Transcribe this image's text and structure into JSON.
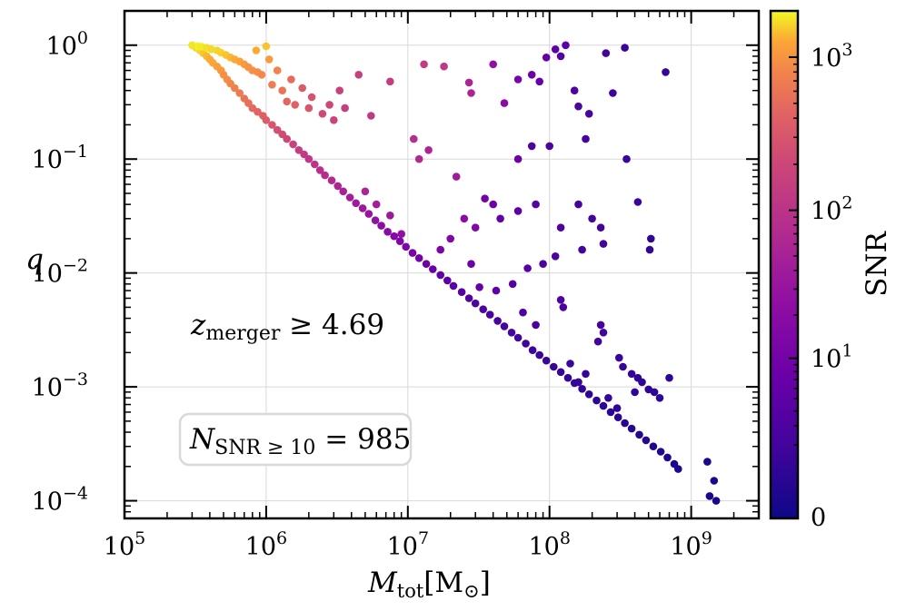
{
  "chart_data": {
    "type": "scatter",
    "title": "",
    "xlabel": "M_tot [M_⊙]",
    "xlabel_main": "M",
    "xlabel_sub": "tot",
    "xlabel_unit": "[M",
    "xlabel_unit_sub": "⊙",
    "xlabel_unit_close": "]",
    "ylabel": "q",
    "x_scale": "log",
    "y_scale": "log",
    "xlim": [
      100000,
      3000000000
    ],
    "ylim": [
      7e-05,
      2
    ],
    "grid": true,
    "x_ticks": [
      {
        "value": 100000,
        "base": "10",
        "exp": "5"
      },
      {
        "value": 1000000,
        "base": "10",
        "exp": "6"
      },
      {
        "value": 10000000,
        "base": "10",
        "exp": "7"
      },
      {
        "value": 100000000,
        "base": "10",
        "exp": "8"
      },
      {
        "value": 1000000000,
        "base": "10",
        "exp": "9"
      }
    ],
    "y_ticks": [
      {
        "value": 1,
        "base": "10",
        "exp": "0"
      },
      {
        "value": 0.1,
        "base": "10",
        "exp": "−1"
      },
      {
        "value": 0.01,
        "base": "10",
        "exp": "−2"
      },
      {
        "value": 0.001,
        "base": "10",
        "exp": "−3"
      },
      {
        "value": 0.0001,
        "base": "10",
        "exp": "−4"
      }
    ],
    "colorbar": {
      "label": "SNR",
      "colormap": "plasma",
      "scale": "symlog",
      "range": [
        0,
        2000
      ],
      "ticks": [
        {
          "value": 0,
          "text": "0",
          "base": "",
          "exp": ""
        },
        {
          "value": 10,
          "text": "",
          "base": "10",
          "exp": "1"
        },
        {
          "value": 100,
          "text": "",
          "base": "10",
          "exp": "2"
        },
        {
          "value": 1000,
          "text": "",
          "base": "10",
          "exp": "3"
        }
      ]
    },
    "annotations": {
      "z_label_main": "z",
      "z_label_sub": "merger",
      "z_label_rest": " ≥ 4.69",
      "n_label_main": "N",
      "n_label_sub": "SNR ≥ 10",
      "n_label_rest": " = 985"
    },
    "series": [
      {
        "points": [
          [
            300000,
            1.0,
            1800
          ],
          [
            320000,
            0.95,
            1700
          ],
          [
            340000,
            0.9,
            1650
          ],
          [
            360000,
            0.85,
            1500
          ],
          [
            380000,
            0.8,
            1400
          ],
          [
            400000,
            0.75,
            1300
          ],
          [
            420000,
            0.7,
            1250
          ],
          [
            450000,
            0.65,
            1150
          ],
          [
            480000,
            0.6,
            1050
          ],
          [
            500000,
            0.55,
            980
          ],
          [
            530000,
            0.5,
            900
          ],
          [
            560000,
            0.46,
            820
          ],
          [
            600000,
            0.42,
            760
          ],
          [
            650000,
            0.38,
            680
          ],
          [
            700000,
            0.34,
            600
          ],
          [
            750000,
            0.31,
            540
          ],
          [
            800000,
            0.28,
            480
          ],
          [
            870000,
            0.26,
            430
          ],
          [
            950000,
            0.24,
            390
          ],
          [
            1000000,
            0.22,
            350
          ],
          [
            1100000,
            0.2,
            300
          ],
          [
            1200000,
            0.18,
            260
          ],
          [
            1300000,
            0.165,
            230
          ],
          [
            1400000,
            0.15,
            200
          ],
          [
            1550000,
            0.135,
            175
          ],
          [
            1700000,
            0.12,
            150
          ],
          [
            1850000,
            0.11,
            130
          ],
          [
            2000000,
            0.1,
            115
          ],
          [
            2200000,
            0.09,
            100
          ],
          [
            2400000,
            0.08,
            88
          ],
          [
            2600000,
            0.072,
            78
          ],
          [
            2900000,
            0.065,
            70
          ],
          [
            3200000,
            0.058,
            60
          ],
          [
            3500000,
            0.052,
            52
          ],
          [
            3900000,
            0.046,
            45
          ],
          [
            4300000,
            0.041,
            40
          ],
          [
            4800000,
            0.037,
            35
          ],
          [
            5300000,
            0.033,
            30
          ],
          [
            5900000,
            0.029,
            26
          ],
          [
            6500000,
            0.026,
            22
          ],
          [
            7200000,
            0.023,
            19
          ],
          [
            8000000,
            0.021,
            17
          ],
          [
            8800000,
            0.019,
            15
          ],
          [
            9700000,
            0.017,
            13
          ],
          [
            10800000,
            0.015,
            11
          ],
          [
            12000000,
            0.0135,
            10
          ],
          [
            13500000,
            0.012,
            8
          ],
          [
            15000000,
            0.0108,
            7
          ],
          [
            17000000,
            0.0096,
            6
          ],
          [
            19000000,
            0.0086,
            5
          ],
          [
            21000000,
            0.0077,
            4.5
          ],
          [
            24000000,
            0.0068,
            4
          ],
          [
            27000000,
            0.006,
            3.6
          ],
          [
            30000000,
            0.0054,
            3.2
          ],
          [
            34000000,
            0.0048,
            3
          ],
          [
            38000000,
            0.0043,
            2.8
          ],
          [
            43000000,
            0.0038,
            2.5
          ],
          [
            48000000,
            0.0034,
            2.3
          ],
          [
            54000000,
            0.003,
            2.1
          ],
          [
            60000000,
            0.0027,
            2
          ],
          [
            68000000,
            0.0024,
            1.8
          ],
          [
            76000000,
            0.0021,
            1.7
          ],
          [
            85000000,
            0.0019,
            1.6
          ],
          [
            95000000,
            0.0017,
            1.5
          ],
          [
            107000000,
            0.0015,
            1.4
          ],
          [
            120000000,
            0.00135,
            1.3
          ],
          [
            135000000,
            0.0012,
            1.2
          ],
          [
            150000000,
            0.00108,
            1.1
          ],
          [
            170000000,
            0.00096,
            1.0
          ],
          [
            190000000,
            0.00086,
            1.0
          ],
          [
            215000000,
            0.00076,
            0.9
          ],
          [
            240000000,
            0.00068,
            0.9
          ],
          [
            270000000,
            0.0006,
            0.8
          ],
          [
            305000000,
            0.00054,
            0.8
          ],
          [
            340000000,
            0.00048,
            0.7
          ],
          [
            380000000,
            0.00043,
            0.7
          ],
          [
            430000000,
            0.00038,
            0.6
          ],
          [
            480000000,
            0.00034,
            0.6
          ],
          [
            540000000,
            0.0003,
            0.5
          ],
          [
            610000000,
            0.00027,
            0.5
          ],
          [
            680000000,
            0.00024,
            0.5
          ],
          [
            760000000,
            0.00021,
            0.4
          ],
          [
            810000000,
            0.00019,
            0.4
          ],
          [
            1300000000,
            0.00022,
            0.3
          ],
          [
            1450000000,
            0.00015,
            0.3
          ],
          [
            1350000000,
            0.00011,
            0.3
          ],
          [
            1500000000,
            0.0001,
            0.3
          ],
          [
            330000,
            0.98,
            1900
          ],
          [
            350000,
            0.97,
            1850
          ],
          [
            380000,
            0.95,
            1750
          ],
          [
            410000,
            0.92,
            1700
          ],
          [
            450000,
            0.9,
            1650
          ],
          [
            480000,
            0.86,
            1600
          ],
          [
            520000,
            0.82,
            1500
          ],
          [
            560000,
            0.78,
            1400
          ],
          [
            600000,
            0.75,
            1300
          ],
          [
            650000,
            0.72,
            1200
          ],
          [
            700000,
            0.68,
            1100
          ],
          [
            750000,
            0.64,
            1000
          ],
          [
            800000,
            0.6,
            950
          ],
          [
            870000,
            0.58,
            900
          ],
          [
            930000,
            0.55,
            850
          ],
          [
            1000000,
            0.98,
            1500
          ],
          [
            850000,
            0.9,
            1300
          ],
          [
            1050000,
            0.75,
            1100
          ],
          [
            1200000,
            0.6,
            800
          ],
          [
            1100000,
            0.45,
            700
          ],
          [
            1300000,
            0.4,
            600
          ],
          [
            1400000,
            0.32,
            450
          ],
          [
            1600000,
            0.3,
            400
          ],
          [
            1500000,
            0.5,
            500
          ],
          [
            1800000,
            0.42,
            350
          ],
          [
            2000000,
            0.28,
            300
          ],
          [
            2100000,
            0.35,
            280
          ],
          [
            2500000,
            0.25,
            220
          ],
          [
            2800000,
            0.3,
            200
          ],
          [
            3000000,
            0.22,
            180
          ],
          [
            3300000,
            0.4,
            170
          ],
          [
            3600000,
            0.28,
            150
          ],
          [
            4500000,
            0.55,
            160
          ],
          [
            5500000,
            0.24,
            120
          ],
          [
            7500000,
            0.48,
            140
          ],
          [
            13000000,
            0.68,
            130
          ],
          [
            18000000,
            0.65,
            120
          ],
          [
            27000000,
            0.47,
            60
          ],
          [
            28000000,
            0.38,
            55
          ],
          [
            40000000,
            0.68,
            25
          ],
          [
            48000000,
            0.31,
            20
          ],
          [
            60000000,
            0.5,
            12
          ],
          [
            75000000,
            0.55,
            8
          ],
          [
            85000000,
            0.48,
            7
          ],
          [
            95000000,
            0.78,
            6
          ],
          [
            110000000,
            0.92,
            5
          ],
          [
            120000000,
            0.8,
            4
          ],
          [
            130000000,
            1.0,
            5
          ],
          [
            150000000,
            0.4,
            3
          ],
          [
            160000000,
            0.29,
            3
          ],
          [
            190000000,
            0.25,
            2.5
          ],
          [
            180000000,
            0.15,
            2.4
          ],
          [
            250000000,
            0.85,
            2
          ],
          [
            280000000,
            0.38,
            1.8
          ],
          [
            340000000,
            0.95,
            1.5
          ],
          [
            660000000,
            0.58,
            1.2
          ],
          [
            350000000,
            0.1,
            1.5
          ],
          [
            100000000,
            0.13,
            3
          ],
          [
            75000000,
            0.13,
            3
          ],
          [
            60000000,
            0.1,
            8
          ],
          [
            11000000,
            0.15,
            80
          ],
          [
            12000000,
            0.1,
            70
          ],
          [
            14000000,
            0.12,
            60
          ],
          [
            22000000,
            0.07,
            40
          ],
          [
            25000000,
            0.03,
            20
          ],
          [
            30000000,
            0.025,
            15
          ],
          [
            35000000,
            0.045,
            10
          ],
          [
            40000000,
            0.04,
            8
          ],
          [
            45000000,
            0.03,
            6
          ],
          [
            60000000,
            0.035,
            5
          ],
          [
            80000000,
            0.04,
            4
          ],
          [
            120000000,
            0.025,
            3
          ],
          [
            160000000,
            0.04,
            2.5
          ],
          [
            200000000,
            0.03,
            2
          ],
          [
            230000000,
            0.025,
            2
          ],
          [
            420000000,
            0.042,
            1.5
          ],
          [
            510000000,
            0.016,
            1.2
          ],
          [
            520000000,
            0.02,
            1.1
          ],
          [
            240000000,
            0.018,
            2
          ],
          [
            170000000,
            0.016,
            2.2
          ],
          [
            110000000,
            0.014,
            3
          ],
          [
            90000000,
            0.012,
            3
          ],
          [
            70000000,
            0.011,
            4
          ],
          [
            55000000,
            0.008,
            4
          ],
          [
            42000000,
            0.007,
            5
          ],
          [
            120000000,
            0.0058,
            3
          ],
          [
            125000000,
            0.005,
            3
          ],
          [
            230000000,
            0.0035,
            2
          ],
          [
            240000000,
            0.003,
            2
          ],
          [
            220000000,
            0.0025,
            1.8
          ],
          [
            310000000,
            0.0018,
            1.5
          ],
          [
            330000000,
            0.0015,
            1.3
          ],
          [
            380000000,
            0.0013,
            1.2
          ],
          [
            420000000,
            0.0012,
            1.1
          ],
          [
            500000000,
            0.00095,
            1
          ],
          [
            600000000,
            0.0008,
            0.9
          ],
          [
            700000000,
            0.0012,
            0.9
          ],
          [
            550000000,
            0.0009,
            0.9
          ],
          [
            260000000,
            0.0008,
            1.2
          ],
          [
            300000000,
            0.00065,
            1.1
          ],
          [
            400000000,
            0.0009,
            1
          ],
          [
            450000000,
            0.0011,
            1
          ],
          [
            160000000,
            0.0011,
            1.4
          ],
          [
            180000000,
            0.0013,
            1.3
          ],
          [
            140000000,
            0.0016,
            1.5
          ],
          [
            80000000,
            0.0035,
            2.5
          ],
          [
            65000000,
            0.0045,
            3
          ],
          [
            32000000,
            0.0075,
            6
          ],
          [
            28000000,
            0.012,
            8
          ],
          [
            17000000,
            0.016,
            12
          ],
          [
            20000000,
            0.02,
            15
          ],
          [
            9000000,
            0.022,
            25
          ],
          [
            7500000,
            0.032,
            35
          ],
          [
            6000000,
            0.04,
            45
          ],
          [
            5000000,
            0.052,
            55
          ]
        ]
      }
    ]
  }
}
